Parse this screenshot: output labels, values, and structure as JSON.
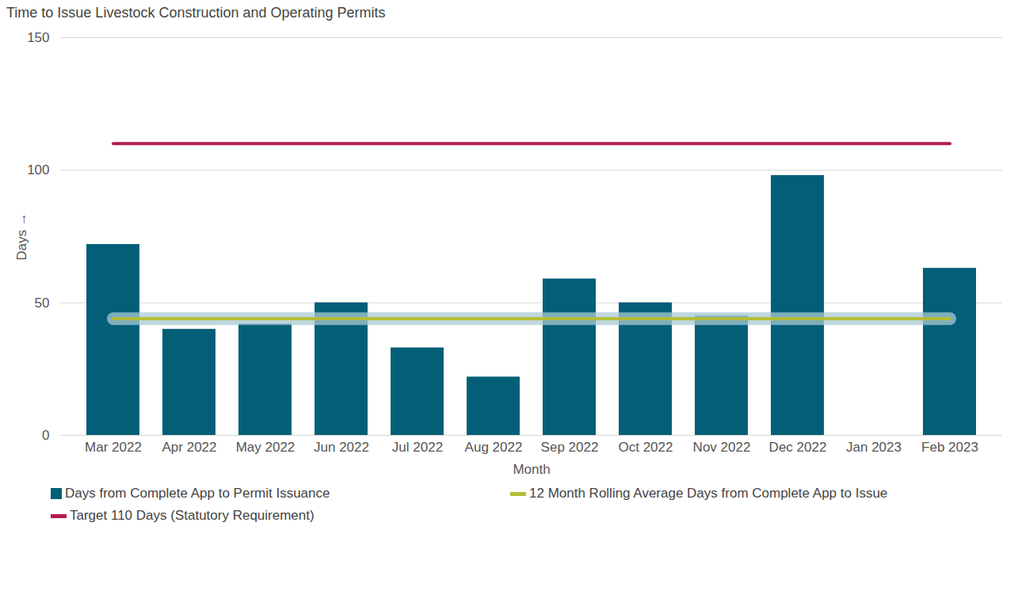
{
  "chart_data": {
    "type": "bar",
    "title": "Time to Issue Livestock Construction and Operating Permits",
    "x_label": "Month",
    "y_label": "Days",
    "categories": [
      "Mar 2022",
      "Apr 2022",
      "May 2022",
      "Jun 2022",
      "Jul 2022",
      "Aug 2022",
      "Sep 2022",
      "Oct 2022",
      "Nov 2022",
      "Dec 2022",
      "Jan 2023",
      "Feb 2023"
    ],
    "series": [
      {
        "name": "Days from Complete App to Permit Issuance",
        "type": "bar",
        "color": "#035f78",
        "values": [
          72,
          40,
          42,
          50,
          33,
          22,
          59,
          50,
          45,
          98,
          null,
          63
        ]
      },
      {
        "name": "12 Month Rolling Average Days from Complete App to Issue",
        "type": "line",
        "color": "#b5bd35",
        "values": [
          44,
          44,
          44,
          44,
          44,
          44,
          44,
          44,
          44,
          44,
          44,
          44
        ]
      },
      {
        "name": "Target 110 Days (Statutory Requirement)",
        "type": "line",
        "color": "#b5194d",
        "values": [
          110,
          110,
          110,
          110,
          110,
          110,
          110,
          110,
          110,
          110,
          110,
          110
        ]
      }
    ],
    "ylim": [
      0,
      150
    ],
    "yticks": [
      0,
      50,
      100,
      150
    ],
    "grid": true,
    "legend": "bottom"
  }
}
